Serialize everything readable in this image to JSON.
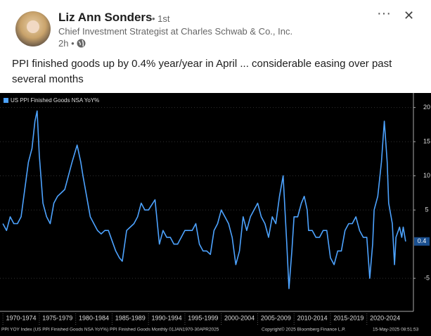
{
  "post": {
    "author": "Liz Ann Sonders",
    "degree": "• 1st",
    "headline": "Chief Investment Strategist at Charles Schwab & Co., Inc.",
    "time": "2h •",
    "text": "PPI finished goods up by 0.4% year/year in April ... considerable easing over past several months"
  },
  "chart_data": {
    "type": "line",
    "series": [
      {
        "name": "US PPI Finished Goods NSA YoY%",
        "color": "#4da3ff",
        "x": [
          1970,
          1970.5,
          1971,
          1971.5,
          1972,
          1972.5,
          1973,
          1973.5,
          1974,
          1974.4,
          1974.7,
          1975,
          1975.5,
          1976,
          1976.5,
          1977,
          1977.5,
          1978,
          1978.5,
          1979,
          1979.5,
          1980.2,
          1980.7,
          1981,
          1981.5,
          1982,
          1982.5,
          1983,
          1983.5,
          1984,
          1984.5,
          1985,
          1985.5,
          1986,
          1986.4,
          1987,
          1987.5,
          1988,
          1988.5,
          1989,
          1989.5,
          1990,
          1990.9,
          1991.5,
          1992,
          1992.5,
          1993,
          1993.5,
          1994,
          1994.5,
          1995,
          1995.5,
          1996,
          1996.5,
          1997,
          1997.5,
          1998,
          1998.5,
          1999,
          1999.5,
          2000,
          2000.5,
          2001,
          2001.5,
          2002,
          2002.5,
          2003,
          2003.5,
          2004,
          2004.5,
          2005,
          2005.5,
          2006,
          2006.5,
          2007,
          2007.5,
          2008,
          2008.5,
          2009,
          2009.3,
          2009.7,
          2010,
          2010.5,
          2011,
          2011.4,
          2011.8,
          2012,
          2012.5,
          2013,
          2013.5,
          2014,
          2014.5,
          2015,
          2015.5,
          2016,
          2016.5,
          2017,
          2017.5,
          2018,
          2018.5,
          2019,
          2019.5,
          2020,
          2020.4,
          2020.8,
          2021,
          2021.5,
          2022,
          2022.4,
          2022.8,
          2023,
          2023.5,
          2023.8,
          2024,
          2024.5,
          2024.8,
          2025,
          2025.33
        ],
        "values": [
          3,
          2,
          4,
          3,
          3,
          4,
          8,
          12,
          14,
          18,
          19.5,
          13,
          6,
          4,
          3,
          6,
          7,
          7.5,
          8,
          10,
          12,
          14.5,
          12,
          10,
          7,
          4,
          3,
          2,
          1.5,
          2,
          2,
          0.5,
          -1,
          -2,
          -2.5,
          2,
          2.5,
          3,
          4,
          6,
          5,
          5,
          6.5,
          0,
          2,
          1,
          1,
          0,
          0,
          1,
          2,
          2,
          2,
          3,
          0,
          -1,
          -1,
          -1.5,
          2,
          3,
          5,
          4,
          3,
          1,
          -3,
          -1,
          4,
          2,
          4,
          5,
          6,
          4,
          3,
          1,
          4,
          3,
          7,
          10,
          0,
          -6.5,
          -1,
          4,
          4,
          6,
          7,
          5,
          2,
          2,
          1,
          1,
          2,
          2,
          -2,
          -3,
          -1,
          -1,
          2,
          3,
          3,
          4,
          2,
          1,
          1,
          -5,
          0,
          5,
          7,
          12,
          18,
          12,
          6,
          3,
          -3,
          1,
          2.5,
          1,
          2.5,
          0.4
        ]
      }
    ],
    "value_labels": [
      {
        "index": 117,
        "label": "0.4"
      }
    ],
    "xlim": [
      1969.6,
      2026.4
    ],
    "xticks": [
      {
        "value": 1970,
        "label": "1970-1974"
      },
      {
        "value": 1975,
        "label": "1975-1979"
      },
      {
        "value": 1980,
        "label": "1980-1984"
      },
      {
        "value": 1985,
        "label": "1985-1989"
      },
      {
        "value": 1990,
        "label": "1990-1994"
      },
      {
        "value": 1995,
        "label": "1995-1999"
      },
      {
        "value": 2000,
        "label": "2000-2004"
      },
      {
        "value": 2005,
        "label": "2005-2009"
      },
      {
        "value": 2010,
        "label": "2010-2014"
      },
      {
        "value": 2015,
        "label": "2015-2019"
      },
      {
        "value": 2020,
        "label": "2020-2024"
      }
    ],
    "ylim": [
      -8.8,
      21.3
    ],
    "yticks": [
      -5,
      5,
      10,
      15,
      20
    ],
    "grid": true,
    "legend": "top-left",
    "footer": [
      "PPI YOY Index (US PPI Finished Goods NSA YoY%) PPI Finished Goods  Monthly 01JAN1970-30APR2025",
      "Copyright© 2025 Bloomberg Finance L.P.",
      "15-May-2025 08:51:53"
    ]
  }
}
